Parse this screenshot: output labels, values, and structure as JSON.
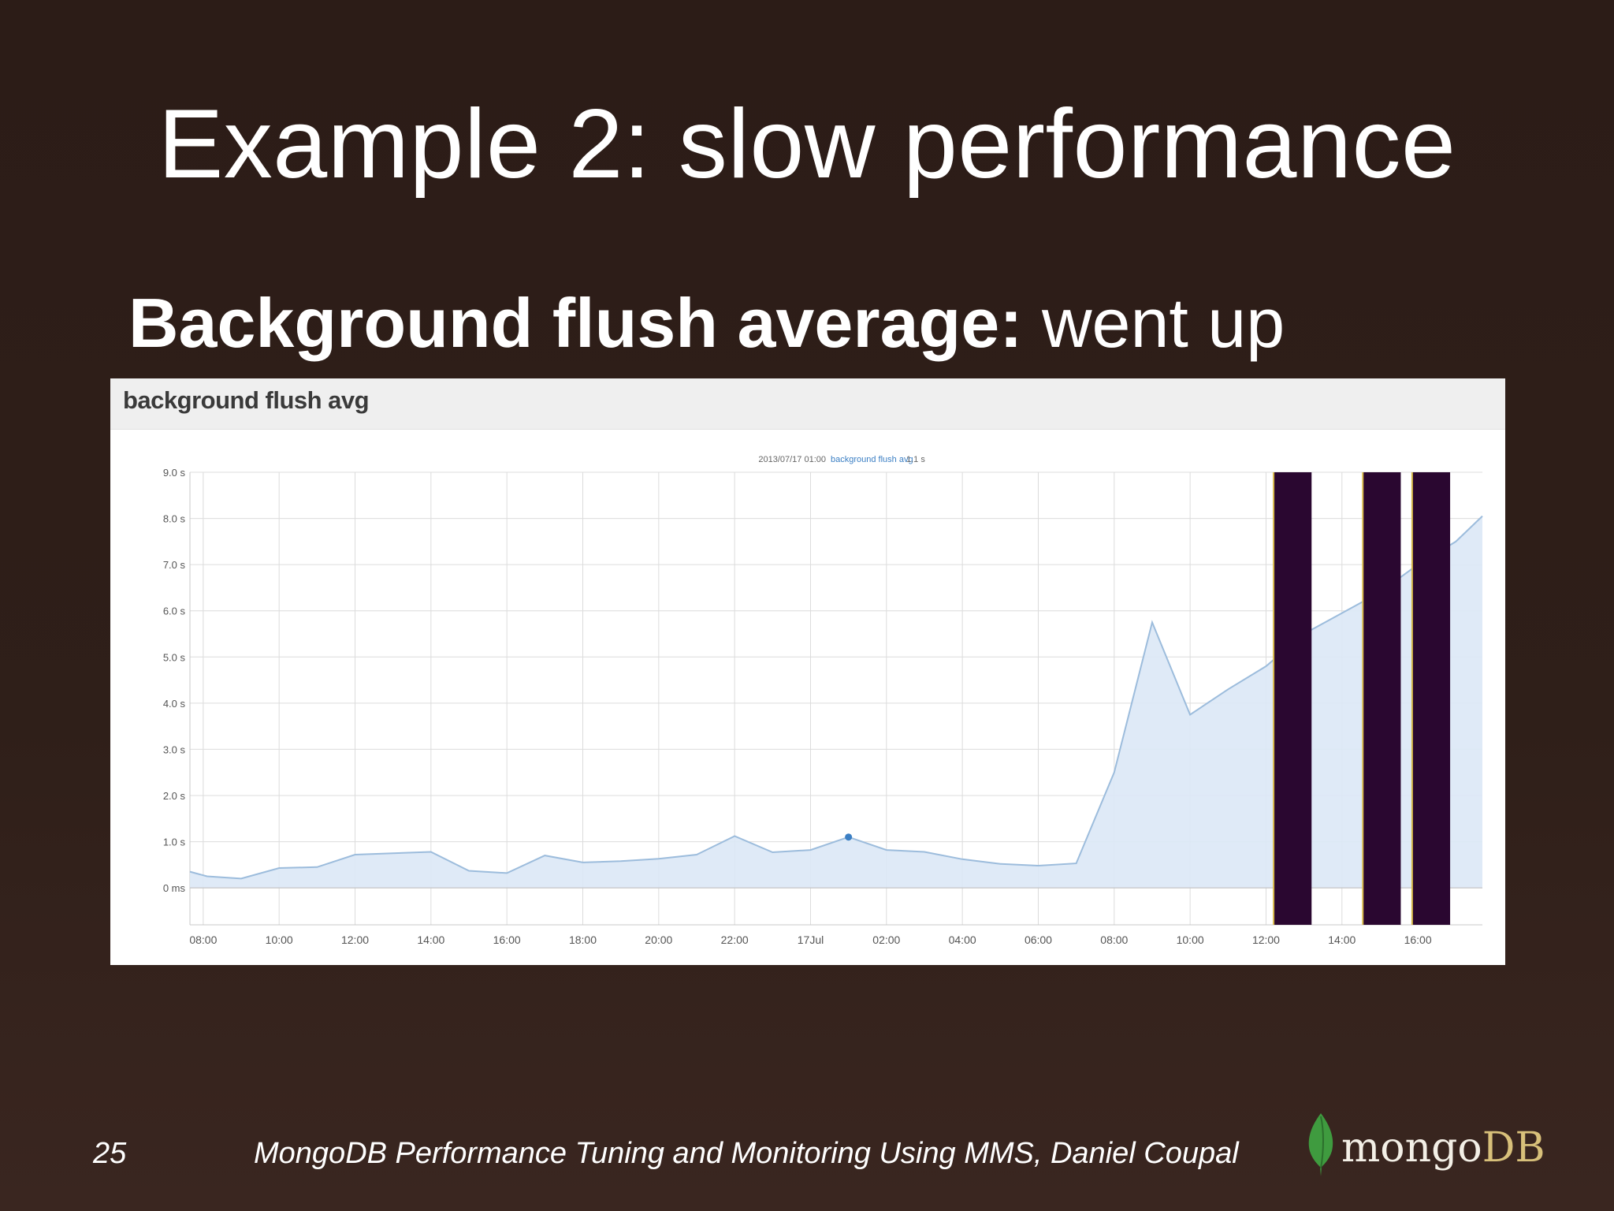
{
  "slide": {
    "title": "Example 2: slow performance",
    "subtitle_bold": "Background flush average:",
    "subtitle_rest": " went up",
    "page_number": "25",
    "footer": "MongoDB Performance Tuning and Monitoring Using MMS, Daniel Coupal",
    "logo_mongo": "mongo",
    "logo_db": "DB"
  },
  "colors": {
    "slide_background": "#2f1f19",
    "area_fill": "#dce8f6",
    "line": "#9cbcdc",
    "marker": "#3b7fc4",
    "bar": "#2a0730",
    "bar_edge": "#d6b84a",
    "grid": "#dcdcdc",
    "logo_leaf": "#3f9b3f"
  },
  "chart_data": {
    "type": "area",
    "title": "background flush avg",
    "tooltip": {
      "time": "2013/07/17 01:00",
      "series": "background flush avg",
      "value": "1.1 s"
    },
    "x_unit": "hours since first tick (08:00)",
    "x_ticks": [
      {
        "x": 0,
        "label": "08:00"
      },
      {
        "x": 2,
        "label": "10:00"
      },
      {
        "x": 4,
        "label": "12:00"
      },
      {
        "x": 6,
        "label": "14:00"
      },
      {
        "x": 8,
        "label": "16:00"
      },
      {
        "x": 10,
        "label": "18:00"
      },
      {
        "x": 12,
        "label": "20:00"
      },
      {
        "x": 14,
        "label": "22:00"
      },
      {
        "x": 16,
        "label": "17Jul"
      },
      {
        "x": 18,
        "label": "02:00"
      },
      {
        "x": 20,
        "label": "04:00"
      },
      {
        "x": 22,
        "label": "06:00"
      },
      {
        "x": 24,
        "label": "08:00"
      },
      {
        "x": 26,
        "label": "10:00"
      },
      {
        "x": 28,
        "label": "12:00"
      },
      {
        "x": 30,
        "label": "14:00"
      },
      {
        "x": 32,
        "label": "16:00"
      }
    ],
    "y_ticks": [
      {
        "y": 0,
        "label": "0 ms"
      },
      {
        "y": 1,
        "label": "1.0 s"
      },
      {
        "y": 2,
        "label": "2.0 s"
      },
      {
        "y": 3,
        "label": "3.0 s"
      },
      {
        "y": 4,
        "label": "4.0 s"
      },
      {
        "y": 5,
        "label": "5.0 s"
      },
      {
        "y": 6,
        "label": "6.0 s"
      },
      {
        "y": 7,
        "label": "7.0 s"
      },
      {
        "y": 8,
        "label": "8.0 s"
      },
      {
        "y": 9,
        "label": "9.0 s"
      }
    ],
    "xlim": [
      -0.35,
      33.7
    ],
    "ylim": [
      -0.8,
      9.0
    ],
    "grid": true,
    "series": [
      {
        "points": [
          [
            -0.35,
            0.35
          ],
          [
            0.1,
            0.25
          ],
          [
            1.0,
            0.2
          ],
          [
            2.0,
            0.43
          ],
          [
            3.0,
            0.45
          ],
          [
            4.0,
            0.72
          ],
          [
            5.0,
            0.75
          ],
          [
            6.0,
            0.78
          ],
          [
            7.0,
            0.37
          ],
          [
            8.0,
            0.32
          ],
          [
            9.0,
            0.7
          ],
          [
            10.0,
            0.55
          ],
          [
            11.0,
            0.58
          ],
          [
            12.0,
            0.63
          ],
          [
            13.0,
            0.72
          ],
          [
            14.0,
            1.12
          ],
          [
            15.0,
            0.77
          ],
          [
            16.0,
            0.82
          ],
          [
            17.0,
            1.1
          ],
          [
            18.0,
            0.82
          ],
          [
            19.0,
            0.78
          ],
          [
            20.0,
            0.62
          ],
          [
            21.0,
            0.52
          ],
          [
            22.0,
            0.48
          ],
          [
            23.0,
            0.53
          ],
          [
            24.0,
            2.5
          ],
          [
            25.0,
            5.75
          ],
          [
            26.0,
            3.75
          ],
          [
            27.0,
            4.3
          ],
          [
            28.0,
            4.8
          ],
          [
            29.0,
            5.5
          ],
          [
            30.0,
            5.95
          ],
          [
            31.0,
            6.4
          ],
          [
            32.0,
            7.0
          ],
          [
            33.0,
            7.5
          ],
          [
            33.7,
            8.05
          ]
        ],
        "highlight_point": [
          17.0,
          1.1
        ]
      }
    ],
    "bars": [
      {
        "x_start": 28.2,
        "x_end": 29.2
      },
      {
        "x_start": 30.55,
        "x_end": 31.55
      },
      {
        "x_start": 31.85,
        "x_end": 32.85
      }
    ]
  }
}
